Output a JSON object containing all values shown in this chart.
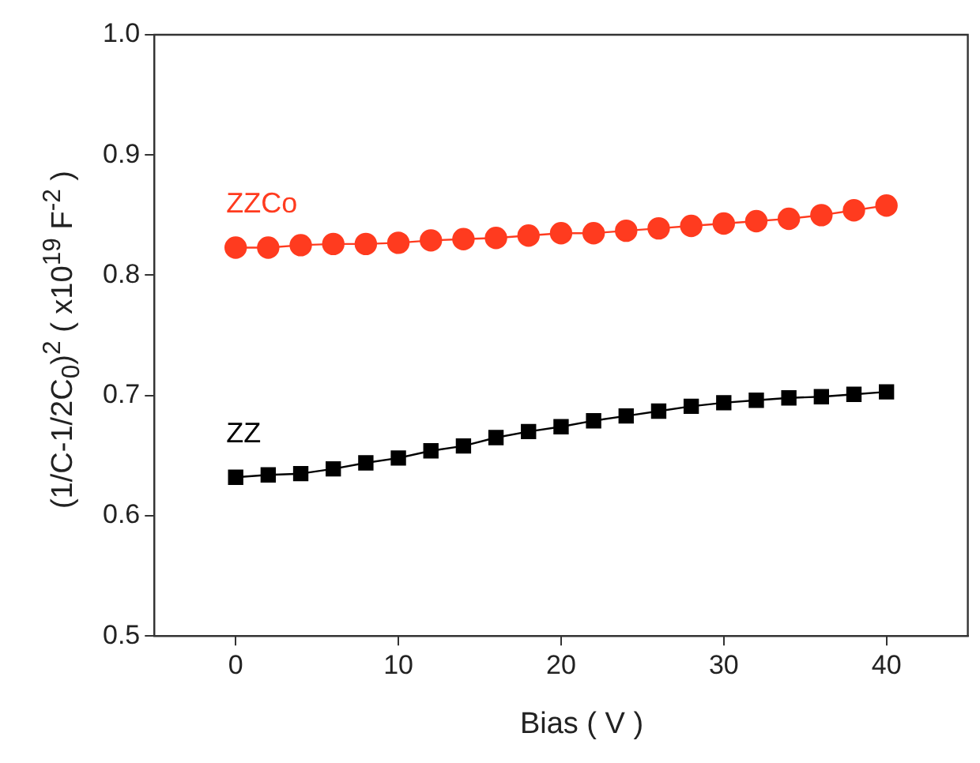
{
  "chart_data": {
    "type": "line",
    "xlabel": "Bias ( V )",
    "ylabel": "(1/C-1/2C$_{0}$)$^{2}$  ( x10$^{19}$  F$^{-2}$ )",
    "x": [
      0,
      2,
      4,
      6,
      8,
      10,
      12,
      14,
      16,
      18,
      20,
      22,
      24,
      26,
      28,
      30,
      32,
      34,
      36,
      38,
      40
    ],
    "xlim": [
      -5,
      45
    ],
    "xticks": [
      0,
      10,
      20,
      30,
      40
    ],
    "ylim": [
      0.5,
      1.0
    ],
    "yticks": [
      {
        "value": 0.5,
        "label": "0.5"
      },
      {
        "value": 0.6,
        "label": "0.6"
      },
      {
        "value": 0.7,
        "label": "0.7"
      },
      {
        "value": 0.8,
        "label": "0.8"
      },
      {
        "value": 0.9,
        "label": "0.9"
      },
      {
        "value": 1.0,
        "label": "1.0"
      }
    ],
    "grid": false,
    "legend": false,
    "line_style": "solid",
    "series": [
      {
        "name": "ZZCo",
        "color": "#ff3b1f",
        "marker": "circle",
        "values": [
          0.823,
          0.823,
          0.825,
          0.826,
          0.826,
          0.827,
          0.829,
          0.83,
          0.831,
          0.833,
          0.835,
          0.835,
          0.837,
          0.839,
          0.841,
          0.843,
          0.845,
          0.847,
          0.85,
          0.854,
          0.858
        ]
      },
      {
        "name": "ZZ",
        "color": "#000000",
        "marker": "square",
        "values": [
          0.632,
          0.634,
          0.635,
          0.639,
          0.644,
          0.648,
          0.654,
          0.658,
          0.665,
          0.67,
          0.674,
          0.679,
          0.683,
          0.687,
          0.691,
          0.694,
          0.696,
          0.698,
          0.699,
          0.701,
          0.703
        ]
      }
    ]
  }
}
